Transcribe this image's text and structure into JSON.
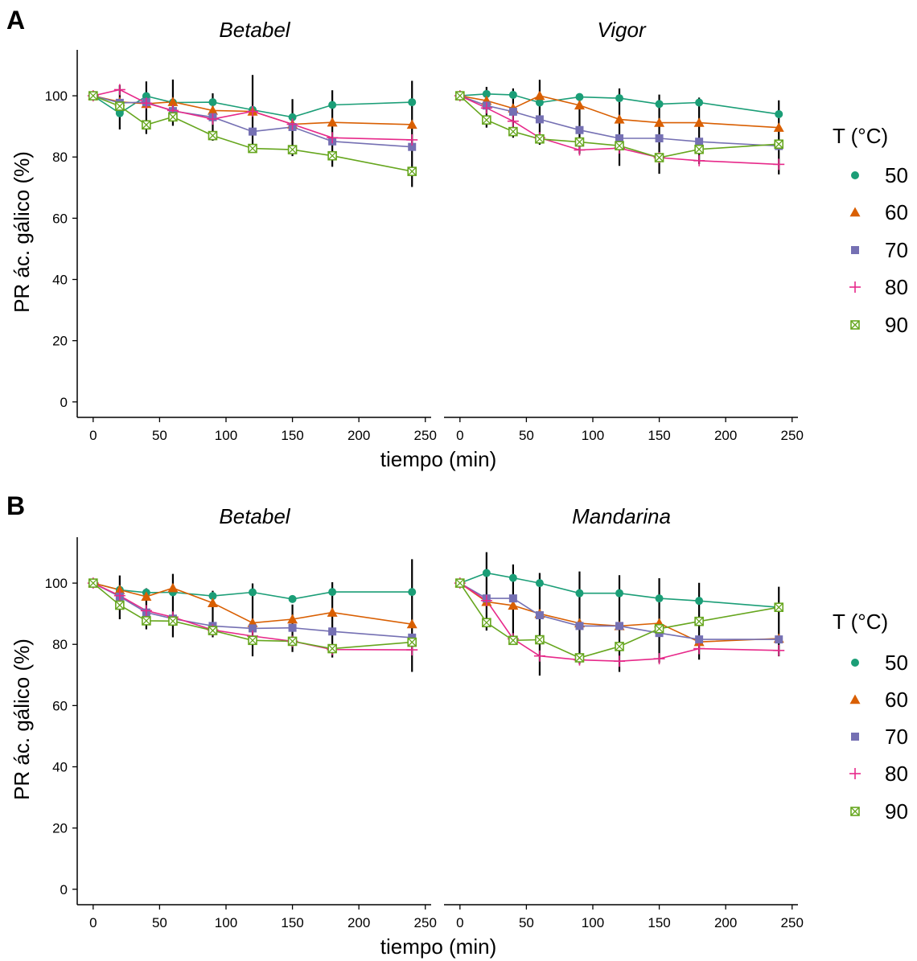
{
  "figure": {
    "panels": [
      {
        "letter": "A",
        "facets": [
          {
            "title": "Betabel",
            "series": [
              {
                "name": "50",
                "values": [
                  100,
                  94.3,
                  99.9,
                  97.8,
                  97.9,
                  95.4,
                  93.0,
                  97.0,
                  97.9
                ]
              },
              {
                "name": "60",
                "values": [
                  100,
                  98.0,
                  97.4,
                  98.0,
                  95.2,
                  94.9,
                  90.7,
                  91.3,
                  90.6
                ]
              },
              {
                "name": "70",
                "values": [
                  100,
                  97.7,
                  97.9,
                  95.0,
                  93.0,
                  88.3,
                  89.8,
                  85.1,
                  83.3
                ]
              },
              {
                "name": "80",
                "values": [
                  100,
                  102.0,
                  97.6,
                  95.2,
                  92.4,
                  94.9,
                  90.7,
                  86.3,
                  85.6
                ]
              },
              {
                "name": "90",
                "values": [
                  100,
                  96.6,
                  90.5,
                  93.1,
                  87.0,
                  82.8,
                  82.4,
                  80.4,
                  75.3
                ]
              }
            ],
            "error_bars": [
              {
                "x": 20,
                "y": 96.4,
                "low": 89.0,
                "high": 103.5
              },
              {
                "x": 40,
                "y": 96.7,
                "low": 87.5,
                "high": 104.7
              },
              {
                "x": 60,
                "y": 96.2,
                "low": 90.2,
                "high": 105.3
              },
              {
                "x": 90,
                "y": 93.9,
                "low": 85.3,
                "high": 100.8
              },
              {
                "x": 120,
                "y": 91.7,
                "low": 81.7,
                "high": 106.8
              },
              {
                "x": 150,
                "y": 89.9,
                "low": 80.3,
                "high": 98.9
              },
              {
                "x": 180,
                "y": 88.6,
                "low": 76.8,
                "high": 101.8
              },
              {
                "x": 240,
                "y": 86.5,
                "low": 70.2,
                "high": 104.9
              }
            ]
          },
          {
            "title": "Vigor",
            "series": [
              {
                "name": "50",
                "values": [
                  100,
                  100.6,
                  100.3,
                  97.8,
                  99.6,
                  99.2,
                  97.3,
                  97.8,
                  94.0
                ]
              },
              {
                "name": "60",
                "values": [
                  100,
                  98.4,
                  95.9,
                  100.0,
                  96.9,
                  92.3,
                  91.2,
                  91.2,
                  89.6
                ]
              },
              {
                "name": "70",
                "values": [
                  100,
                  96.8,
                  94.8,
                  92.3,
                  88.8,
                  86.1,
                  86.1,
                  85.0,
                  83.6
                ]
              },
              {
                "name": "80",
                "values": [
                  100,
                  96.0,
                  91.7,
                  86.3,
                  82.3,
                  82.9,
                  79.8,
                  78.8,
                  77.6
                ]
              },
              {
                "name": "90",
                "values": [
                  100,
                  92.1,
                  88.3,
                  85.9,
                  84.9,
                  83.7,
                  79.8,
                  82.5,
                  84.2
                ]
              }
            ],
            "error_bars": [
              {
                "x": 20,
                "y": 96.0,
                "low": 89.6,
                "high": 102.9
              },
              {
                "x": 40,
                "y": 93.9,
                "low": 86.3,
                "high": 102.4
              },
              {
                "x": 60,
                "y": 92.7,
                "low": 84.0,
                "high": 105.2
              },
              {
                "x": 90,
                "y": 90.3,
                "low": 81.0,
                "high": 100.7
              },
              {
                "x": 120,
                "y": 88.8,
                "low": 77.1,
                "high": 102.4
              },
              {
                "x": 150,
                "y": 86.9,
                "low": 74.5,
                "high": 100.4
              },
              {
                "x": 180,
                "y": 87.1,
                "low": 77.7,
                "high": 99.4
              },
              {
                "x": 240,
                "y": 85.8,
                "low": 74.3,
                "high": 98.5
              }
            ]
          }
        ]
      },
      {
        "letter": "B",
        "facets": [
          {
            "title": "Betabel",
            "series": [
              {
                "name": "50",
                "values": [
                  100,
                  97.8,
                  96.9,
                  97.0,
                  95.8,
                  97.0,
                  94.8,
                  97.1,
                  97.1
                ]
              },
              {
                "name": "60",
                "values": [
                  100,
                  97.8,
                  95.6,
                  98.4,
                  93.5,
                  87.0,
                  88.2,
                  90.4,
                  86.6
                ]
              },
              {
                "name": "70",
                "values": [
                  100,
                  95.6,
                  90.4,
                  88.4,
                  86.0,
                  85.2,
                  85.4,
                  84.2,
                  82.2
                ]
              },
              {
                "name": "80",
                "values": [
                  100,
                  95.9,
                  91.0,
                  88.9,
                  84.7,
                  82.7,
                  81.0,
                  78.3,
                  78.2
                ]
              },
              {
                "name": "90",
                "values": [
                  100,
                  92.8,
                  87.7,
                  87.6,
                  84.5,
                  81.3,
                  81.0,
                  78.6,
                  80.7
                ]
              }
            ],
            "error_bars": [
              {
                "x": 20,
                "y": 95.6,
                "low": 88.2,
                "high": 102.5
              },
              {
                "x": 40,
                "y": 92.3,
                "low": 84.9,
                "high": 98.3
              },
              {
                "x": 60,
                "y": 92.1,
                "low": 82.3,
                "high": 103.0
              },
              {
                "x": 90,
                "y": 88.9,
                "low": 82.3,
                "high": 97.5
              },
              {
                "x": 120,
                "y": 86.6,
                "low": 76.1,
                "high": 99.9
              },
              {
                "x": 150,
                "y": 86.1,
                "low": 77.5,
                "high": 93.0
              },
              {
                "x": 180,
                "y": 85.7,
                "low": 75.7,
                "high": 100.3
              },
              {
                "x": 240,
                "y": 85.0,
                "low": 71.0,
                "high": 107.8
              }
            ]
          },
          {
            "title": "Mandarina",
            "series": [
              {
                "name": "50",
                "values": [
                  100,
                  103.3,
                  101.7,
                  100.0,
                  96.7,
                  96.7,
                  95.0,
                  94.2,
                  92.1
                ]
              },
              {
                "name": "60",
                "values": [
                  100,
                  93.9,
                  92.7,
                  90.0,
                  86.9,
                  86.0,
                  86.9,
                  80.8,
                  81.9
                ]
              },
              {
                "name": "70",
                "values": [
                  100,
                  95.0,
                  95.0,
                  89.5,
                  86.0,
                  86.0,
                  83.7,
                  81.6,
                  81.6
                ]
              },
              {
                "name": "80",
                "values": [
                  100,
                  94.3,
                  81.8,
                  76.2,
                  74.9,
                  74.5,
                  75.3,
                  78.6,
                  78.0
                ]
              },
              {
                "name": "90",
                "values": [
                  100,
                  87.1,
                  81.3,
                  81.5,
                  75.6,
                  79.3,
                  85.1,
                  87.5,
                  92.1
                ]
              }
            ],
            "error_bars": [
              {
                "x": 20,
                "y": 94.7,
                "low": 84.5,
                "high": 110.1
              },
              {
                "x": 40,
                "y": 90.5,
                "low": 80.0,
                "high": 106.1
              },
              {
                "x": 60,
                "y": 87.4,
                "low": 69.8,
                "high": 103.3
              },
              {
                "x": 90,
                "y": 84.0,
                "low": 73.6,
                "high": 103.8
              },
              {
                "x": 120,
                "y": 84.6,
                "low": 71.0,
                "high": 102.6
              },
              {
                "x": 150,
                "y": 85.4,
                "low": 74.0,
                "high": 101.6
              },
              {
                "x": 180,
                "y": 84.5,
                "low": 75.0,
                "high": 100.1
              },
              {
                "x": 240,
                "y": 85.1,
                "low": 76.1,
                "high": 98.8
              }
            ]
          }
        ]
      }
    ],
    "x_values": [
      0,
      20,
      40,
      60,
      90,
      120,
      150,
      180,
      240
    ],
    "x_ticks": [
      0,
      50,
      100,
      150,
      200,
      250
    ],
    "y_ticks": [
      0,
      20,
      40,
      60,
      80,
      100
    ],
    "x_range": [
      -12,
      255
    ],
    "y_range": [
      -4,
      115
    ],
    "xlabel": "tiempo (min)",
    "ylabel": "PR ác. gálico (%)",
    "legend": {
      "title": "T (°C)",
      "position": "right",
      "items": [
        {
          "label": "50",
          "marker": "circle",
          "color": "#1b9e77"
        },
        {
          "label": "60",
          "marker": "triangle",
          "color": "#d95f02"
        },
        {
          "label": "70",
          "marker": "square",
          "color": "#7570b3"
        },
        {
          "label": "80",
          "marker": "plus",
          "color": "#e7298a"
        },
        {
          "label": "90",
          "marker": "boxed-x",
          "color": "#66a61e"
        }
      ]
    }
  },
  "chart_data": [
    {
      "type": "line",
      "panel": "A",
      "title": "Betabel",
      "x": [
        0,
        20,
        40,
        60,
        90,
        120,
        150,
        180,
        240
      ],
      "series": [
        {
          "name": "50",
          "values": [
            100,
            94.3,
            99.9,
            97.8,
            97.9,
            95.4,
            93.0,
            97.0,
            97.9
          ]
        },
        {
          "name": "60",
          "values": [
            100,
            98.0,
            97.4,
            98.0,
            95.2,
            94.9,
            90.7,
            91.3,
            90.6
          ]
        },
        {
          "name": "70",
          "values": [
            100,
            97.7,
            97.9,
            95.0,
            93.0,
            88.3,
            89.8,
            85.1,
            83.3
          ]
        },
        {
          "name": "80",
          "values": [
            100,
            102.0,
            97.6,
            95.2,
            92.4,
            94.9,
            90.7,
            86.3,
            85.6
          ]
        },
        {
          "name": "90",
          "values": [
            100,
            96.6,
            90.5,
            93.1,
            87.0,
            82.8,
            82.4,
            80.4,
            75.3
          ]
        }
      ],
      "xlabel": "tiempo (min)",
      "ylabel": "PR ác. gálico (%)",
      "xlim": [
        -12,
        255
      ],
      "ylim": [
        -4,
        115
      ]
    },
    {
      "type": "line",
      "panel": "A",
      "title": "Vigor",
      "x": [
        0,
        20,
        40,
        60,
        90,
        120,
        150,
        180,
        240
      ],
      "series": [
        {
          "name": "50",
          "values": [
            100,
            100.6,
            100.3,
            97.8,
            99.6,
            99.2,
            97.3,
            97.8,
            94.0
          ]
        },
        {
          "name": "60",
          "values": [
            100,
            98.4,
            95.9,
            100.0,
            96.9,
            92.3,
            91.2,
            91.2,
            89.6
          ]
        },
        {
          "name": "70",
          "values": [
            100,
            96.8,
            94.8,
            92.3,
            88.8,
            86.1,
            86.1,
            85.0,
            83.6
          ]
        },
        {
          "name": "80",
          "values": [
            100,
            96.0,
            91.7,
            86.3,
            82.3,
            82.9,
            79.8,
            78.8,
            77.6
          ]
        },
        {
          "name": "90",
          "values": [
            100,
            92.1,
            88.3,
            85.9,
            84.9,
            83.7,
            79.8,
            82.5,
            84.2
          ]
        }
      ],
      "xlabel": "tiempo (min)",
      "ylabel": "PR ác. gálico (%)",
      "xlim": [
        -12,
        255
      ],
      "ylim": [
        -4,
        115
      ]
    },
    {
      "type": "line",
      "panel": "B",
      "title": "Betabel",
      "x": [
        0,
        20,
        40,
        60,
        90,
        120,
        150,
        180,
        240
      ],
      "series": [
        {
          "name": "50",
          "values": [
            100,
            97.8,
            96.9,
            97.0,
            95.8,
            97.0,
            94.8,
            97.1,
            97.1
          ]
        },
        {
          "name": "60",
          "values": [
            100,
            97.8,
            95.6,
            98.4,
            93.5,
            87.0,
            88.2,
            90.4,
            86.6
          ]
        },
        {
          "name": "70",
          "values": [
            100,
            95.6,
            90.4,
            88.4,
            86.0,
            85.2,
            85.4,
            84.2,
            82.2
          ]
        },
        {
          "name": "80",
          "values": [
            100,
            95.9,
            91.0,
            88.9,
            84.7,
            82.7,
            81.0,
            78.3,
            78.2
          ]
        },
        {
          "name": "90",
          "values": [
            100,
            92.8,
            87.7,
            87.6,
            84.5,
            81.3,
            81.0,
            78.6,
            80.7
          ]
        }
      ],
      "xlabel": "tiempo (min)",
      "ylabel": "PR ác. gálico (%)",
      "xlim": [
        -12,
        255
      ],
      "ylim": [
        -4,
        115
      ]
    },
    {
      "type": "line",
      "panel": "B",
      "title": "Mandarina",
      "x": [
        0,
        20,
        40,
        60,
        90,
        120,
        150,
        180,
        240
      ],
      "series": [
        {
          "name": "50",
          "values": [
            100,
            103.3,
            101.7,
            100.0,
            96.7,
            96.7,
            95.0,
            94.2,
            92.1
          ]
        },
        {
          "name": "60",
          "values": [
            100,
            93.9,
            92.7,
            90.0,
            86.9,
            86.0,
            86.9,
            80.8,
            81.9
          ]
        },
        {
          "name": "70",
          "values": [
            100,
            95.0,
            95.0,
            89.5,
            86.0,
            86.0,
            83.7,
            81.6,
            81.6
          ]
        },
        {
          "name": "80",
          "values": [
            100,
            94.3,
            81.8,
            76.2,
            74.9,
            74.5,
            75.3,
            78.6,
            78.0
          ]
        },
        {
          "name": "90",
          "values": [
            100,
            87.1,
            81.3,
            81.5,
            75.6,
            79.3,
            85.1,
            87.5,
            92.1
          ]
        }
      ],
      "xlabel": "tiempo (min)",
      "ylabel": "PR ác. gálico (%)",
      "xlim": [
        -12,
        255
      ],
      "ylim": [
        -4,
        115
      ]
    }
  ]
}
